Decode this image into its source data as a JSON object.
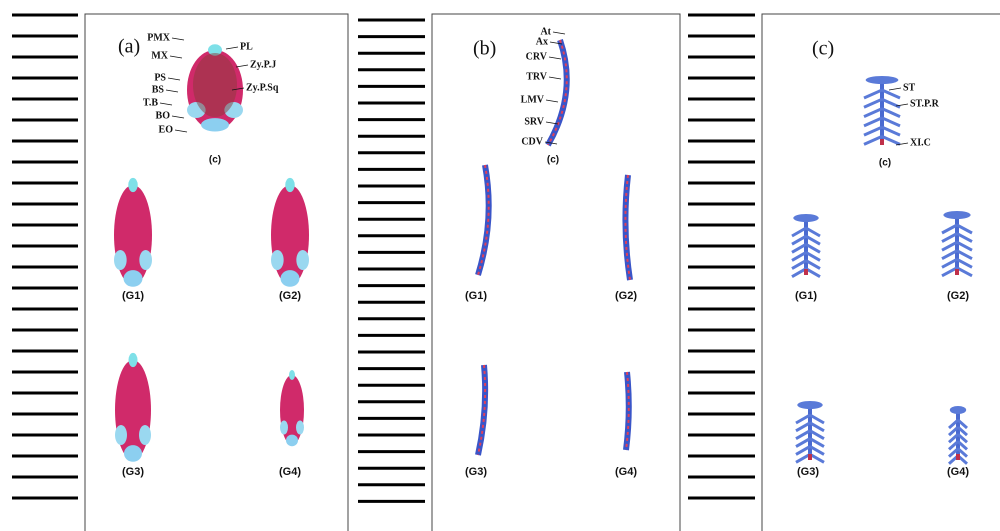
{
  "panels": [
    {
      "label": "(a)",
      "annotations": [
        "PMX",
        "MX",
        "PS",
        "BS",
        "T.B",
        "BO",
        "EO",
        "PL",
        "Zy.P.J",
        "Zy.P.Sq"
      ],
      "control_label": "(c)",
      "groups": [
        "(G1)",
        "(G2)",
        "(G3)",
        "(G4)"
      ]
    },
    {
      "label": "(b)",
      "annotations": [
        "At",
        "Ax",
        "CRV",
        "TRV",
        "LMV",
        "SRV",
        "CDV"
      ],
      "control_label": "(c)",
      "groups": [
        "(G1)",
        "(G2)",
        "(G3)",
        "(G4)"
      ]
    },
    {
      "label": "(c)",
      "annotations": [
        "ST",
        "ST.P.R",
        "XI.C"
      ],
      "control_label": "(c)",
      "groups": [
        "(G1)",
        "(G2)",
        "(G3)",
        "(G4)"
      ]
    }
  ]
}
